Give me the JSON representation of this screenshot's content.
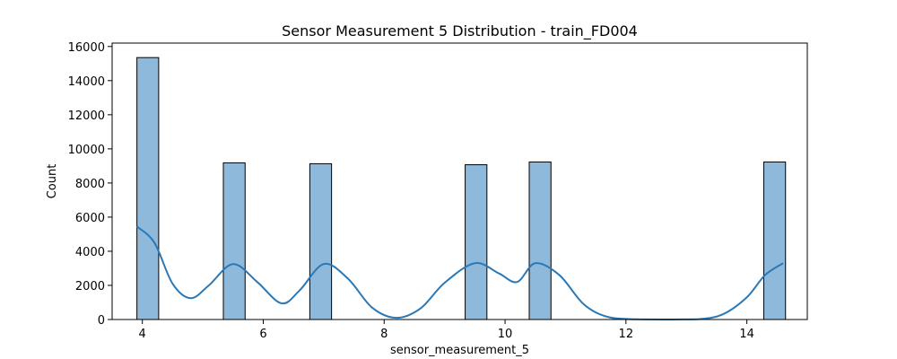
{
  "chart_data": {
    "type": "bar",
    "title": "Sensor Measurement 5 Distribution - train_FD004",
    "xlabel": "sensor_measurement_5",
    "ylabel": "Count",
    "xlim": [
      3.5,
      15.0
    ],
    "ylim": [
      0,
      16200
    ],
    "xticks": [
      4,
      6,
      8,
      10,
      12,
      14
    ],
    "yticks": [
      0,
      2000,
      4000,
      6000,
      8000,
      10000,
      12000,
      14000,
      16000
    ],
    "bin_width": 0.36,
    "bins": [
      {
        "start": 3.91,
        "count": 15350
      },
      {
        "start": 5.34,
        "count": 9180
      },
      {
        "start": 6.77,
        "count": 9130
      },
      {
        "start": 9.34,
        "count": 9070
      },
      {
        "start": 10.4,
        "count": 9230
      },
      {
        "start": 14.28,
        "count": 9230
      }
    ],
    "kde": {
      "x": [
        3.91,
        4.2,
        4.5,
        4.8,
        5.1,
        5.5,
        5.9,
        6.3,
        6.6,
        7.0,
        7.4,
        7.8,
        8.2,
        8.6,
        9.0,
        9.5,
        9.9,
        10.2,
        10.5,
        10.9,
        11.3,
        11.7,
        12.2,
        12.7,
        13.2,
        13.6,
        14.0,
        14.3,
        14.6
      ],
      "y": [
        5450,
        4500,
        2100,
        1250,
        2000,
        3250,
        2200,
        950,
        1700,
        3250,
        2400,
        700,
        100,
        650,
        2150,
        3300,
        2700,
        2200,
        3300,
        2600,
        900,
        150,
        10,
        0,
        20,
        300,
        1300,
        2600,
        3300
      ]
    }
  }
}
